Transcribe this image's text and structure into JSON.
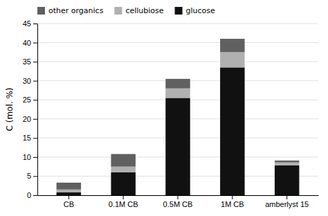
{
  "chart_data": {
    "type": "bar",
    "stacked": true,
    "categories": [
      "CB",
      "0.1M CB",
      "0.5M CB",
      "1M CB",
      "amberlyst 15"
    ],
    "series": [
      {
        "name": "glucose",
        "color": "#111111",
        "values": [
          0.8,
          6.0,
          25.5,
          33.5,
          7.8
        ]
      },
      {
        "name": "cellubiose",
        "color": "#b0b0b0",
        "values": [
          0.7,
          1.5,
          2.5,
          4.0,
          0.8
        ]
      },
      {
        "name": "other organics",
        "color": "#606060",
        "values": [
          1.8,
          3.3,
          2.5,
          3.5,
          0.5
        ]
      }
    ],
    "ylabel": "C (mol. %)",
    "ylim": [
      0,
      45
    ],
    "yticks": [
      0,
      5,
      10,
      15,
      20,
      25,
      30,
      35,
      40,
      45
    ],
    "grid": true,
    "legend": "upper left"
  }
}
